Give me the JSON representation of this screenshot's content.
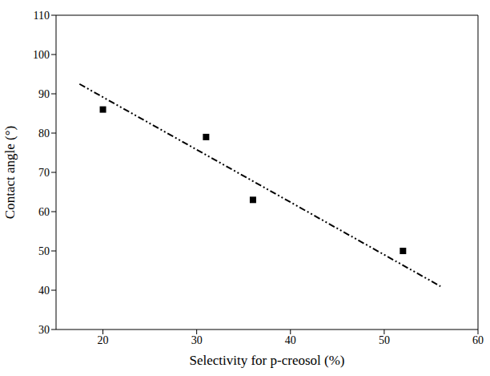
{
  "chart_data": {
    "type": "scatter",
    "xlabel": "Selectivity for p-creosol (%)",
    "ylabel": "Contact angle (°)",
    "xlim": [
      15,
      60
    ],
    "xticks": [
      20,
      30,
      40,
      50,
      60
    ],
    "ylim": [
      30,
      110
    ],
    "yticks": [
      30,
      40,
      50,
      60,
      70,
      80,
      90,
      100,
      110
    ],
    "grid": false,
    "series": [
      {
        "type": "scatter",
        "color": "#000000",
        "marker": "square",
        "x": [
          20,
          31,
          36,
          52
        ],
        "values": [
          86,
          79,
          63,
          50
        ]
      },
      {
        "type": "line",
        "color": "#000000",
        "line_style": "dashdot",
        "x": [
          17.5,
          56
        ],
        "values": [
          92.5,
          41
        ]
      }
    ]
  }
}
